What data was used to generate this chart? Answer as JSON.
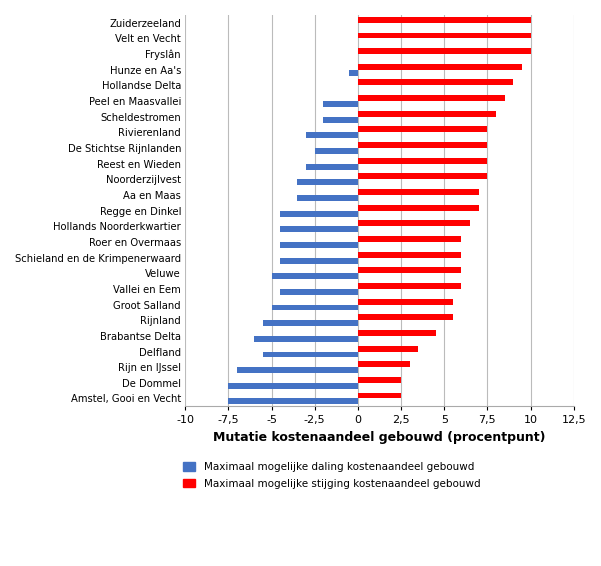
{
  "categories": [
    "Zuiderzeeland",
    "Velt en Vecht",
    "Fryslân",
    "Hunze en Aa's",
    "Hollandse Delta",
    "Peel en Maasvallei",
    "Scheldestromen",
    "Rivierenland",
    "De Stichtse Rijnlanden",
    "Reest en Wieden",
    "Noorderzijlvest",
    "Aa en Maas",
    "Regge en Dinkel",
    "Hollands Noorderkwartier",
    "Roer en Overmaas",
    "Schieland en de Krimpenerwaard",
    "Veluwe",
    "Vallei en Eem",
    "Groot Salland",
    "Rijnland",
    "Brabantse Delta",
    "Delfland",
    "Rijn en IJssel",
    "De Dommel",
    "Amstel, Gooi en Vecht"
  ],
  "blue_values": [
    0.0,
    0.0,
    0.0,
    -0.5,
    0.0,
    -2.0,
    -2.0,
    -3.0,
    -2.5,
    -3.0,
    -3.5,
    -3.5,
    -4.5,
    -4.5,
    -4.5,
    -4.5,
    -5.0,
    -4.5,
    -5.0,
    -5.5,
    -6.0,
    -5.5,
    -7.0,
    -7.5,
    -7.5
  ],
  "red_values": [
    10.0,
    10.0,
    10.0,
    9.5,
    9.0,
    8.5,
    8.0,
    7.5,
    7.5,
    7.5,
    7.5,
    7.0,
    7.0,
    6.5,
    6.0,
    6.0,
    6.0,
    6.0,
    5.5,
    5.5,
    4.5,
    3.5,
    3.0,
    2.5,
    2.5
  ],
  "blue_color": "#4472C4",
  "red_color": "#FF0000",
  "xlabel": "Mutatie kostenaandeel gebouwd (procentpunt)",
  "xlim": [
    -10,
    12.5
  ],
  "xticks": [
    -10,
    -7.5,
    -5,
    -2.5,
    0,
    2.5,
    5,
    7.5,
    10,
    12.5
  ],
  "legend_blue": "Maximaal mogelijke daling kostenaandeel gebouwd",
  "legend_red": "Maximaal mogelijke stijging kostenaandeel gebouwd",
  "bar_height": 0.38,
  "grid_color": "#bbbbbb",
  "background_color": "#ffffff"
}
